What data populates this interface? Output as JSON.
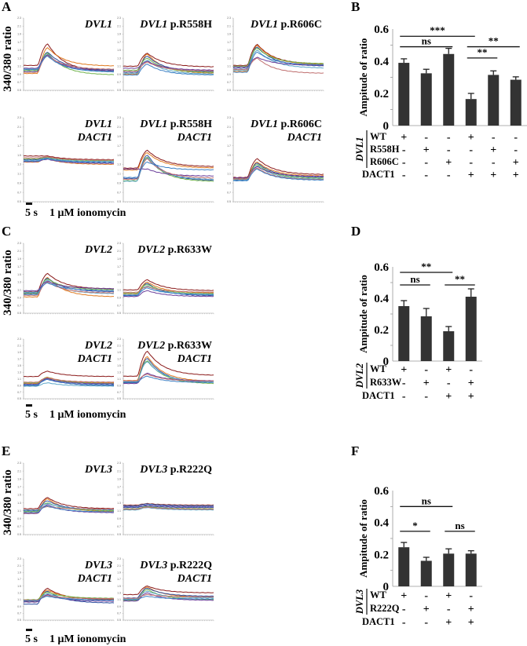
{
  "figure": {
    "trace_colors": [
      "#8B1A1A",
      "#E07B20",
      "#2F4FA0",
      "#6FB24A",
      "#5BA7C9",
      "#6A3D9A",
      "#C07070",
      "#3B7FC4",
      "#2E2E6E",
      "#9FC3E0"
    ],
    "bar_color": "#333333",
    "scale_bar_label": "5 s",
    "stimulus_label": "1 μM ionomycin",
    "trace_ylabel": "340/380 ratio"
  },
  "chart_data": [
    {
      "id": "A",
      "type": "line",
      "panel_letter": "A",
      "ylabel": "340/380 ratio",
      "ylim": [
        0.5,
        2.3
      ],
      "yticks": [
        "2.3",
        "2.1",
        "1.9",
        "1.7",
        "1.5",
        "1.3",
        "1.1",
        "0.9",
        "0.7",
        "0.5"
      ],
      "xlabel": "",
      "scale_bar": "5 s",
      "stimulus": "1 μM ionomycin",
      "subplots": [
        {
          "title_italic": "DVL1",
          "title_rest": "",
          "title2": "",
          "baselines": [
            1.12,
            0.92,
            0.97,
            1.0,
            1.03,
            1.05,
            0.95,
            1.02
          ],
          "peaks": [
            1.65,
            1.56,
            1.45,
            1.43,
            1.4,
            1.38,
            1.36,
            1.35
          ],
          "ends": [
            0.97,
            1.1,
            1.0,
            0.88,
            0.95,
            0.98,
            1.02,
            0.96
          ]
        },
        {
          "title_italic": "DVL1",
          "title_rest": " p.R558H",
          "title2": "",
          "baselines": [
            1.1,
            0.9,
            0.95,
            1.0,
            0.92,
            1.05,
            0.97,
            0.88
          ],
          "peaks": [
            1.42,
            1.4,
            1.35,
            1.3,
            1.25,
            1.22,
            1.2,
            1.15
          ],
          "ends": [
            1.08,
            0.92,
            0.96,
            0.94,
            0.9,
            1.0,
            0.98,
            0.88
          ]
        },
        {
          "title_italic": "DVL1",
          "title_rest": " p.R606C",
          "title2": "",
          "baselines": [
            1.12,
            0.97,
            1.05,
            1.1,
            1.0,
            1.08,
            1.02,
            0.95
          ],
          "peaks": [
            1.64,
            1.62,
            1.58,
            1.55,
            1.5,
            1.32,
            1.3,
            1.45
          ],
          "ends": [
            1.15,
            1.14,
            1.1,
            1.16,
            1.05,
            1.12,
            0.92,
            1.13
          ]
        },
        {
          "title_italic": "DVL1",
          "title_rest": "",
          "title2": "DACT1",
          "baselines": [
            1.48,
            1.35,
            1.4,
            1.42,
            1.38,
            1.36,
            1.44,
            1.37
          ],
          "peaks": [
            1.48,
            1.42,
            1.44,
            1.45,
            1.43,
            1.41,
            1.46,
            1.42
          ],
          "ends": [
            1.4,
            1.3,
            1.35,
            1.38,
            1.36,
            1.32,
            1.39,
            1.34
          ]
        },
        {
          "title_italic": "DVL1",
          "title_rest": " p.R558H",
          "title2": "DACT1",
          "baselines": [
            1.22,
            1.18,
            1.0,
            0.95,
            0.94,
            1.2,
            0.98,
            1.02
          ],
          "peaks": [
            1.6,
            1.55,
            1.5,
            1.46,
            1.44,
            1.2,
            1.42,
            1.35
          ],
          "ends": [
            1.25,
            1.22,
            0.95,
            0.93,
            0.97,
            1.05,
            1.0,
            1.18
          ]
        },
        {
          "title_italic": "DVL1",
          "title_rest": " p.R606C",
          "title2": "DACT1",
          "baselines": [
            1.02,
            0.98,
            0.96,
            1.0,
            0.97,
            1.01,
            0.99,
            0.95
          ],
          "peaks": [
            1.42,
            1.35,
            1.33,
            1.3,
            1.27,
            1.25,
            1.22,
            1.2
          ],
          "ends": [
            1.08,
            1.05,
            1.02,
            1.0,
            0.98,
            1.04,
            0.97,
            0.96
          ]
        }
      ]
    },
    {
      "id": "B",
      "type": "bar",
      "panel_letter": "B",
      "ylabel": "Ampitude of ratio",
      "ylim": [
        0,
        0.6
      ],
      "yticks": [
        "0.6",
        "0.4",
        "0.2",
        "0"
      ],
      "gene_label": "DVL1",
      "rows": [
        {
          "label": "WT",
          "signs": [
            "+",
            "-",
            "-",
            "+",
            "-",
            "-"
          ]
        },
        {
          "label": "R558H",
          "signs": [
            "-",
            "+",
            "-",
            "-",
            "+",
            "-"
          ]
        },
        {
          "label": "R606C",
          "signs": [
            "-",
            "-",
            "+",
            "-",
            "-",
            "+"
          ]
        },
        {
          "label": "DACT1",
          "signs": [
            "-",
            "-",
            "-",
            "+",
            "+",
            "+"
          ]
        }
      ],
      "values": [
        0.39,
        0.325,
        0.445,
        0.165,
        0.315,
        0.285
      ],
      "errors": [
        0.025,
        0.025,
        0.035,
        0.035,
        0.025,
        0.018
      ],
      "significance": [
        {
          "from": 0,
          "to": 3,
          "level": 0.555,
          "label": "***"
        },
        {
          "from": 0,
          "to": 2,
          "level": 0.49,
          "label": "ns"
        },
        {
          "from": 3,
          "to": 5,
          "level": 0.49,
          "label": "**"
        },
        {
          "from": 3,
          "to": 4,
          "level": 0.42,
          "label": "**"
        }
      ]
    },
    {
      "id": "C",
      "type": "line",
      "panel_letter": "C",
      "ylabel": "340/380 ratio",
      "ylim": [
        0.5,
        2.3
      ],
      "yticks": [
        "2.3",
        "2.1",
        "1.9",
        "1.7",
        "1.5",
        "1.3",
        "1.1",
        "0.9",
        "0.7",
        "0.5"
      ],
      "scale_bar": "5 s",
      "stimulus": "1 μM ionomycin",
      "subplots": [
        {
          "title_italic": "DVL2",
          "title_rest": "",
          "title2": "",
          "baselines": [
            1.05,
            0.92,
            1.0,
            1.02,
            0.98,
            1.08,
            0.96,
            1.04
          ],
          "peaks": [
            1.52,
            1.42,
            1.4,
            1.38,
            1.35,
            1.32,
            1.3,
            1.28
          ],
          "ends": [
            1.12,
            0.92,
            1.05,
            1.1,
            1.0,
            1.13,
            1.02,
            1.08
          ]
        },
        {
          "title_italic": "DVL2",
          "title_rest": " p.R633W",
          "title2": "",
          "baselines": [
            1.1,
            1.0,
            0.95,
            1.02,
            0.98,
            0.93,
            1.04,
            0.96
          ],
          "peaks": [
            1.36,
            1.3,
            1.27,
            1.24,
            1.2,
            1.08,
            1.18,
            1.15
          ],
          "ends": [
            1.08,
            1.02,
            0.95,
            1.0,
            0.97,
            0.93,
            1.04,
            0.98
          ]
        },
        {
          "title_italic": "DVL2",
          "title_rest": "",
          "title2": "DACT1",
          "baselines": [
            1.17,
            0.96,
            0.9,
            0.98,
            0.88,
            0.94,
            1.0,
            0.92
          ],
          "peaks": [
            1.33,
            1.15,
            1.12,
            1.14,
            0.98,
            1.1,
            1.13,
            1.08
          ],
          "ends": [
            1.17,
            0.98,
            0.9,
            0.96,
            0.88,
            0.95,
            1.0,
            0.92
          ]
        },
        {
          "title_italic": "DVL2",
          "title_rest": " p.R633W",
          "title2": "DACT1",
          "baselines": [
            1.18,
            1.05,
            0.98,
            1.0,
            1.02,
            0.96,
            1.04,
            1.0
          ],
          "peaks": [
            1.93,
            1.77,
            1.72,
            1.65,
            1.62,
            1.27,
            1.24,
            1.18
          ],
          "ends": [
            1.2,
            1.02,
            0.98,
            0.95,
            1.0,
            1.04,
            1.03,
            0.99
          ]
        }
      ]
    },
    {
      "id": "D",
      "type": "bar",
      "panel_letter": "D",
      "ylabel": "Ampitude of ratio",
      "ylim": [
        0,
        0.6
      ],
      "yticks": [
        "0.6",
        "0.4",
        "0.2",
        "0"
      ],
      "gene_label": "DVL2",
      "rows": [
        {
          "label": "WT",
          "signs": [
            "+",
            "-",
            "+",
            "-"
          ]
        },
        {
          "label": "R633W",
          "signs": [
            "-",
            "+",
            "-",
            "+"
          ]
        },
        {
          "label": "DACT1",
          "signs": [
            "-",
            "-",
            "+",
            "+"
          ]
        }
      ],
      "values": [
        0.35,
        0.285,
        0.19,
        0.41
      ],
      "errors": [
        0.035,
        0.05,
        0.03,
        0.05
      ],
      "significance": [
        {
          "from": 0,
          "to": 2,
          "level": 0.565,
          "label": "**"
        },
        {
          "from": 0,
          "to": 1,
          "level": 0.485,
          "label": "ns"
        },
        {
          "from": 2,
          "to": 3,
          "level": 0.485,
          "label": "**"
        }
      ]
    },
    {
      "id": "E",
      "type": "line",
      "panel_letter": "E",
      "ylabel": "340/380 ratio",
      "ylim": [
        0.5,
        2.3
      ],
      "yticks": [
        "2.3",
        "2.1",
        "1.9",
        "1.7",
        "1.5",
        "1.3",
        "1.1",
        "0.9",
        "0.7",
        "0.5"
      ],
      "scale_bar": "5 s",
      "stimulus": "1 μM ionomycin",
      "subplots": [
        {
          "title_italic": "DVL3",
          "title_rest": "",
          "title2": "",
          "baselines": [
            1.15,
            1.05,
            1.1,
            1.08,
            1.12,
            1.03,
            1.14,
            1.06
          ],
          "peaks": [
            1.43,
            1.4,
            1.35,
            1.3,
            1.28,
            1.25,
            1.2,
            1.22
          ],
          "ends": [
            1.15,
            1.08,
            1.12,
            1.1,
            1.13,
            1.05,
            1.14,
            1.07
          ]
        },
        {
          "title_italic": "DVL3",
          "title_rest": " p.R222Q",
          "title2": "",
          "baselines": [
            1.24,
            1.13,
            1.18,
            1.15,
            1.12,
            1.2,
            1.14,
            1.22
          ],
          "peaks": [
            1.28,
            1.2,
            1.22,
            1.2,
            1.18,
            1.25,
            1.19,
            1.27
          ],
          "ends": [
            1.24,
            1.13,
            1.18,
            1.15,
            1.12,
            1.2,
            1.14,
            1.22
          ]
        },
        {
          "title_italic": "DVL3",
          "title_rest": "",
          "title2": "DACT1",
          "baselines": [
            1.05,
            1.08,
            0.97,
            1.1,
            1.06,
            1.03,
            1.09,
            1.07
          ],
          "peaks": [
            1.43,
            1.38,
            1.35,
            1.32,
            1.28,
            1.25,
            1.22,
            1.2
          ],
          "ends": [
            1.1,
            1.12,
            1.0,
            1.14,
            1.08,
            1.05,
            1.13,
            1.09
          ]
        },
        {
          "title_italic": "DVL3",
          "title_rest": " p.R222Q",
          "title2": "DACT1",
          "baselines": [
            1.25,
            1.1,
            1.15,
            1.08,
            1.12,
            1.06,
            1.14,
            1.1
          ],
          "peaks": [
            1.5,
            1.47,
            1.44,
            1.4,
            1.35,
            1.3,
            1.25,
            1.2
          ],
          "ends": [
            1.3,
            1.17,
            1.2,
            1.1,
            1.15,
            1.08,
            1.18,
            1.12
          ]
        }
      ]
    },
    {
      "id": "F",
      "type": "bar",
      "panel_letter": "F",
      "ylabel": "Ampitude of ratio",
      "ylim": [
        0,
        0.6
      ],
      "yticks": [
        "0.6",
        "0.4",
        "0.2",
        "0"
      ],
      "gene_label": "DVL3",
      "rows": [
        {
          "label": "WT",
          "signs": [
            "+",
            "-",
            "+",
            "-"
          ]
        },
        {
          "label": "R222Q",
          "signs": [
            "-",
            "+",
            "-",
            "+"
          ]
        },
        {
          "label": "DACT1",
          "signs": [
            "-",
            "-",
            "+",
            "+"
          ]
        }
      ],
      "values": [
        0.245,
        0.16,
        0.205,
        0.205
      ],
      "errors": [
        0.03,
        0.022,
        0.03,
        0.018
      ],
      "significance": [
        {
          "from": 0,
          "to": 2,
          "level": 0.5,
          "label": "ns"
        },
        {
          "from": 0,
          "to": 1,
          "level": 0.345,
          "label": "*"
        },
        {
          "from": 2,
          "to": 3,
          "level": 0.345,
          "label": "ns"
        }
      ]
    }
  ]
}
